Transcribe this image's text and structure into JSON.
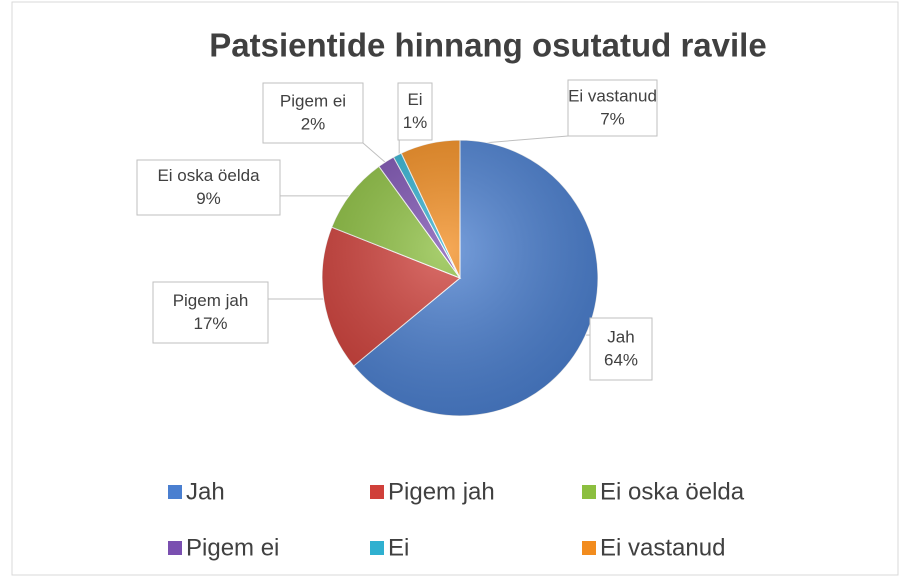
{
  "chart_data": {
    "type": "pie",
    "title": "Patsientide hinnang osutatud ravile",
    "categories": [
      "Jah",
      "Pigem jah",
      "Ei oska öelda",
      "Pigem ei",
      "Ei",
      "Ei vastanud"
    ],
    "values": [
      64,
      17,
      9,
      2,
      1,
      7
    ],
    "value_labels": [
      "64%",
      "17%",
      "9%",
      "2%",
      "1%",
      "7%"
    ],
    "colors": [
      "#4a7fd0",
      "#d0403a",
      "#8cbf3f",
      "#7a4fb0",
      "#2fb0d0",
      "#f28c1e"
    ],
    "legend": "bottom"
  }
}
